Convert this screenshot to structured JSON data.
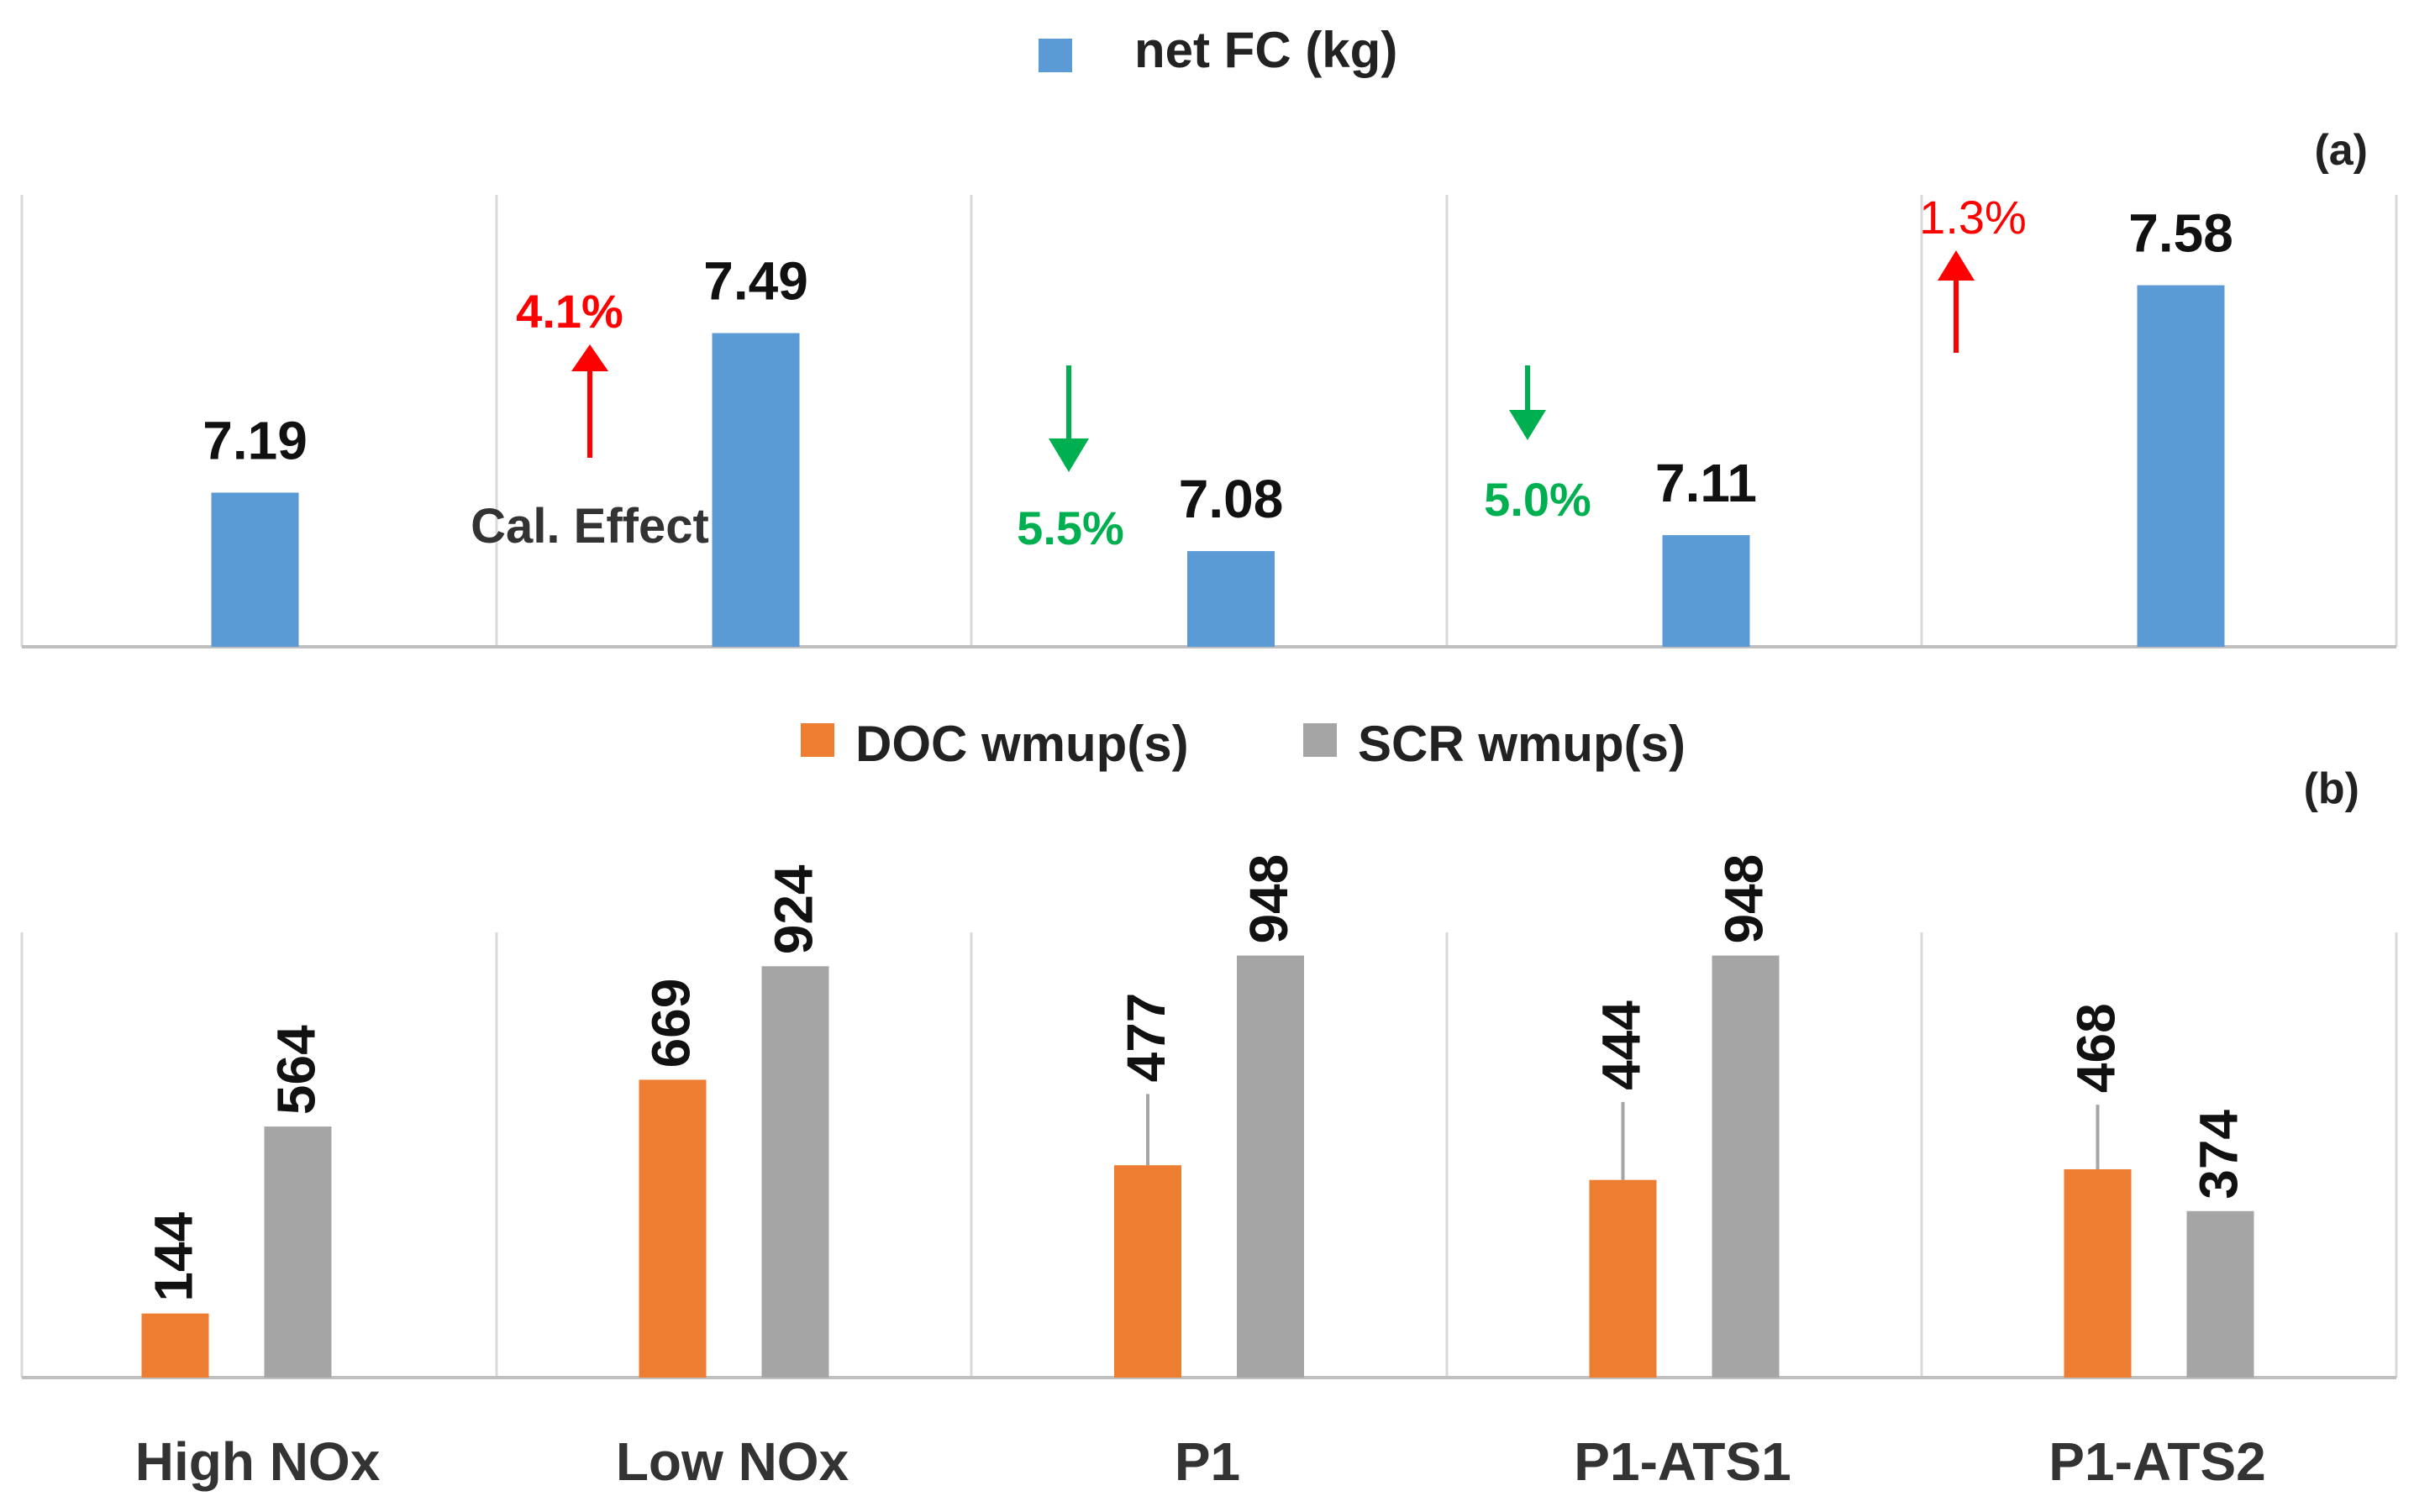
{
  "chart_data": [
    {
      "type": "bar",
      "panel_label": "(a)",
      "legend": [
        {
          "name": "net FC (kg)",
          "color": "#5b9bd5"
        }
      ],
      "categories": [
        "High NOx",
        "Low NOx",
        "P1",
        "P1-ATS1",
        "P1-ATS2"
      ],
      "series": [
        {
          "name": "net FC (kg)",
          "values": [
            7.19,
            7.49,
            7.08,
            7.11,
            7.58
          ]
        }
      ],
      "data_labels": [
        "7.19",
        "7.49",
        "7.08",
        "7.11",
        "7.58"
      ],
      "ylim": [
        6.9,
        7.75
      ],
      "annotations": [
        {
          "category": "Low NOx",
          "text": "4.1%",
          "direction": "up",
          "color": "#ff0000",
          "note": "Cal. Effect"
        },
        {
          "category": "P1",
          "text": "5.5%",
          "direction": "down",
          "color": "#00b050"
        },
        {
          "category": "P1-ATS1",
          "text": "5.0%",
          "direction": "down",
          "color": "#00b050"
        },
        {
          "category": "P1-ATS2",
          "text": "1.3%",
          "direction": "up",
          "color": "#ff0000"
        }
      ]
    },
    {
      "type": "bar",
      "panel_label": "(b)",
      "legend": [
        {
          "name": "DOC wmup(s)",
          "color": "#ed7d31"
        },
        {
          "name": "SCR wmup(s)",
          "color": "#a5a5a5"
        }
      ],
      "categories": [
        "High NOx",
        "Low NOx",
        "P1",
        "P1-ATS1",
        "P1-ATS2"
      ],
      "series": [
        {
          "name": "DOC wmup(s)",
          "values": [
            144,
            669,
            477,
            444,
            468
          ],
          "error_plus": [
            0,
            0,
            160,
            175,
            145
          ]
        },
        {
          "name": "SCR wmup(s)",
          "values": [
            564,
            924,
            948,
            948,
            374
          ]
        }
      ],
      "ylim": [
        0,
        1000
      ]
    }
  ]
}
